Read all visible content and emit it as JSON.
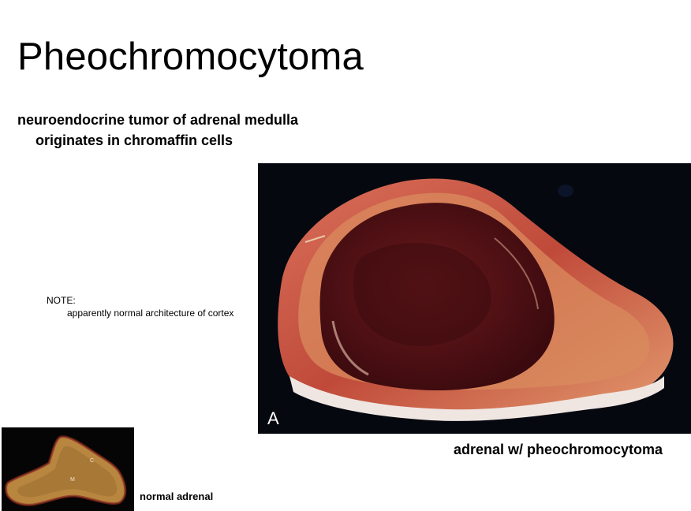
{
  "slide": {
    "title": "Pheochromocytoma",
    "subtitle_line1": "neuroendocrine tumor of adrenal medulla",
    "subtitle_line2": "originates in chromaffin cells",
    "note_label": "NOTE:",
    "note_text": "apparently normal architecture of cortex"
  },
  "main_image": {
    "panel_letter": "A",
    "caption": "adrenal w/ pheochromocytoma"
  },
  "small_image": {
    "label_cortex": "C",
    "label_medulla": "M",
    "caption": "normal adrenal"
  },
  "colors": {
    "photo_background": "#06080f",
    "tumor": "#5a1418",
    "cortex_rim": "#c2513f",
    "normal_adrenal": "#b8863f"
  }
}
